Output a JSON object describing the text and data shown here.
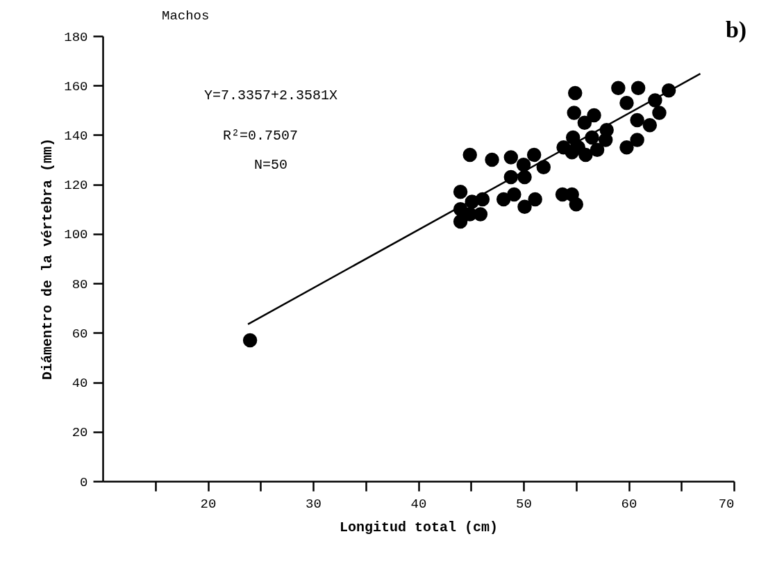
{
  "chart_data": {
    "type": "scatter",
    "title": "Machos",
    "xlabel": "Longitud total (cm)",
    "ylabel": "Diámentro de la vértebra (mm)",
    "annotations": [
      "Y=7.3357+2.3581X",
      "R²=0.7507",
      "N=50",
      "b)"
    ],
    "xlim": [
      10,
      70
    ],
    "xticks": [
      {
        "value": 15,
        "label": null
      },
      20,
      {
        "value": 25,
        "label": null
      },
      30,
      {
        "value": 35,
        "label": null
      },
      40,
      {
        "value": 45,
        "label": null
      },
      50,
      {
        "value": 55,
        "label": null
      },
      60,
      {
        "value": 65,
        "label": null
      },
      70
    ],
    "ylim": [
      0,
      180
    ],
    "yticks": [
      0,
      20,
      40,
      60,
      80,
      100,
      120,
      140,
      160,
      180
    ],
    "grid": false,
    "series": [
      {
        "marker": "circle",
        "color": "#000000",
        "x": [
          24.0,
          54.9,
          59.0,
          60.9,
          59.8,
          62.5,
          63.8,
          54.8,
          56.7,
          55.8,
          62.9,
          60.8,
          62.0,
          57.9,
          54.7,
          56.5,
          57.8,
          60.8,
          59.8,
          53.8,
          55.2,
          57.0,
          55.9,
          54.6,
          44.9,
          47.0,
          48.8,
          51.0,
          50.0,
          51.9,
          48.8,
          50.1,
          44.0,
          46.1,
          45.1,
          44.0,
          45.9,
          44.0,
          44.9,
          48.1,
          49.1,
          50.1,
          51.1,
          53.7,
          54.6,
          55.0
        ],
        "values": [
          57,
          157,
          159,
          159,
          153,
          154,
          158,
          149,
          148,
          145,
          149,
          146,
          144,
          142,
          139,
          139,
          138,
          138,
          135,
          135,
          135,
          134,
          132,
          133,
          132,
          130,
          131,
          132,
          128,
          127,
          123,
          123,
          117,
          114,
          113,
          110,
          108,
          105,
          108,
          114,
          116,
          111,
          114,
          116,
          116,
          112
        ]
      },
      {
        "type": "line",
        "color": "#000000",
        "x": [
          23.8,
          66.8
        ],
        "values": [
          63.5,
          164.8
        ]
      }
    ]
  }
}
